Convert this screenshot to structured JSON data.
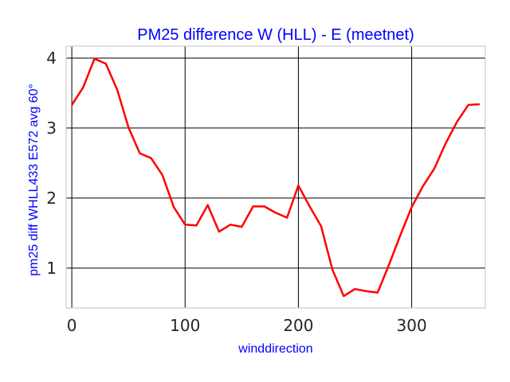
{
  "chart_data": {
    "type": "line",
    "title": "PM25 difference W (HLL) - E (meetnet)",
    "xlabel": "winddirection",
    "ylabel": "pm25 diff WHLL433 E572 avg 60°",
    "xlim": [
      -5,
      365
    ],
    "ylim": [
      0.43,
      4.17
    ],
    "xticks": [
      0,
      100,
      200,
      300
    ],
    "yticks": [
      1,
      2,
      3,
      4
    ],
    "grid": true,
    "colors": {
      "series": "#ff0000",
      "title": "#0000ff",
      "axis_label": "#0000ff",
      "grid": "#000000",
      "frame": "#cccccc"
    },
    "series": [
      {
        "color": "#ff0000",
        "x": [
          0,
          10,
          20,
          30,
          40,
          50,
          60,
          70,
          80,
          90,
          100,
          110,
          120,
          130,
          140,
          150,
          160,
          170,
          180,
          190,
          200,
          210,
          220,
          230,
          240,
          250,
          260,
          270,
          280,
          290,
          300,
          310,
          320,
          330,
          340,
          350,
          360
        ],
        "y": [
          3.33,
          3.58,
          3.99,
          3.92,
          3.55,
          3.01,
          2.64,
          2.57,
          2.33,
          1.87,
          1.62,
          1.61,
          1.9,
          1.52,
          1.62,
          1.59,
          1.88,
          1.88,
          1.79,
          1.72,
          2.18,
          1.88,
          1.6,
          0.98,
          0.6,
          0.7,
          0.67,
          0.65,
          1.05,
          1.47,
          1.87,
          2.17,
          2.42,
          2.78,
          3.09,
          3.33,
          3.34
        ]
      }
    ]
  }
}
